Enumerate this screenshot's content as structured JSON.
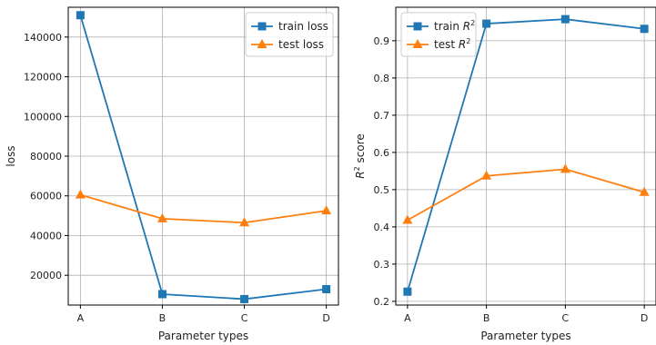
{
  "chart_data": [
    {
      "type": "line",
      "categories": [
        "A",
        "B",
        "C",
        "D"
      ],
      "series": [
        {
          "name": "train loss",
          "values": [
            151000,
            10500,
            8000,
            13000
          ],
          "color": "#1f77b4",
          "marker": "square"
        },
        {
          "name": "test loss",
          "values": [
            60500,
            48500,
            46500,
            52500
          ],
          "color": "#ff7f0e",
          "marker": "triangle"
        }
      ],
      "xlabel": "Parameter types",
      "ylabel": "loss",
      "ylim": [
        5000,
        155000
      ],
      "yticks": [
        20000,
        40000,
        60000,
        80000,
        100000,
        120000,
        140000
      ],
      "grid": true,
      "legend_position": "top-right"
    },
    {
      "type": "line",
      "categories": [
        "A",
        "B",
        "C",
        "D"
      ],
      "series": [
        {
          "name": "train R²",
          "values": [
            0.226,
            0.946,
            0.958,
            0.932
          ],
          "color": "#1f77b4",
          "marker": "square"
        },
        {
          "name": "test R²",
          "values": [
            0.418,
            0.537,
            0.555,
            0.493
          ],
          "color": "#ff7f0e",
          "marker": "triangle"
        }
      ],
      "xlabel": "Parameter types",
      "ylabel": "R² score",
      "ylim": [
        0.19,
        0.99
      ],
      "yticks": [
        0.2,
        0.3,
        0.4,
        0.5,
        0.6,
        0.7,
        0.8,
        0.9
      ],
      "grid": true,
      "legend_position": "top-left"
    }
  ]
}
